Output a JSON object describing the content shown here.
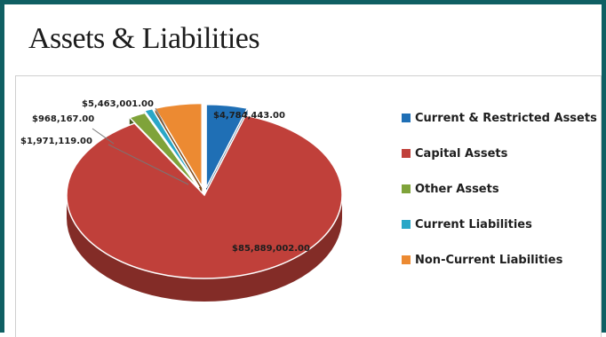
{
  "chart_data": {
    "type": "pie",
    "title": "Assets & Liabilities",
    "categories": [
      "Current & Restricted Assets",
      "Capital Assets",
      "Other Assets",
      "Current Liabilities",
      "Non-Current Liabilities"
    ],
    "values": [
      4784443.0,
      85889002.0,
      1971119.0,
      968167.0,
      5463001.0
    ],
    "data_labels": [
      "$4,784,443.00",
      "$85,889,002.00",
      "$1,971,119.00",
      "$968,167.00",
      "$5,463,001.00"
    ],
    "colors": [
      "#1f6fb5",
      "#c0403a",
      "#7fa33a",
      "#2aa7c7",
      "#ec8a32"
    ],
    "style": "3d-exploded",
    "legend_position": "right"
  }
}
